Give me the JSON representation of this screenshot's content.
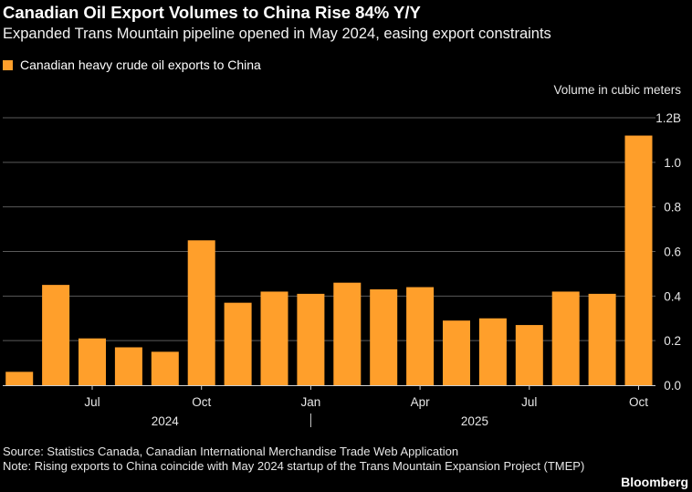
{
  "title": "Canadian Oil Export Volumes to China Rise 84% Y/Y",
  "subtitle": "Expanded Trans Mountain pipeline opened in May 2024, easing export constraints",
  "legend": {
    "label": "Canadian heavy crude oil exports to China"
  },
  "units_label": "Volume in cubic meters",
  "colors": {
    "bar": "#ff9f2b",
    "grid": "#5a5a5a",
    "background": "#000000",
    "text": "#ffffff"
  },
  "chart_data": {
    "type": "bar",
    "x": [
      "2024-05",
      "2024-06",
      "2024-07",
      "2024-08",
      "2024-09",
      "2024-10",
      "2024-11",
      "2024-12",
      "2025-01",
      "2025-02",
      "2025-03",
      "2025-04",
      "2025-05",
      "2025-06",
      "2025-07",
      "2025-08",
      "2025-09",
      "2025-10"
    ],
    "series": [
      {
        "name": "Canadian heavy crude oil exports to China",
        "values": [
          0.06,
          0.45,
          0.21,
          0.17,
          0.15,
          0.65,
          0.37,
          0.42,
          0.41,
          0.46,
          0.43,
          0.44,
          0.29,
          0.3,
          0.27,
          0.42,
          0.41,
          1.12
        ]
      }
    ],
    "ylim": [
      0,
      1.2
    ],
    "yticks": [
      "0.0",
      "0.2",
      "0.4",
      "0.6",
      "0.8",
      "1.0",
      "1.2B"
    ],
    "xticks": [
      {
        "label": "Jul",
        "index": 2
      },
      {
        "label": "Oct",
        "index": 5
      },
      {
        "label": "Jan",
        "index": 8
      },
      {
        "label": "Apr",
        "index": 11
      },
      {
        "label": "Jul",
        "index": 14
      },
      {
        "label": "Oct",
        "index": 17
      }
    ],
    "year_labels": [
      {
        "label": "2024",
        "index": 4
      },
      {
        "label": "2025",
        "index": 12.5
      }
    ],
    "year_divider_index": 8,
    "ylabel": "Volume in cubic meters",
    "grid": true,
    "legend_position": "top-left"
  },
  "source": "Source: Statistics Canada, Canadian International Merchandise Trade Web Application",
  "note": "Note: Rising exports to China coincide with May 2024 startup of the Trans Mountain Expansion Project (TMEP)",
  "brand": "Bloomberg"
}
